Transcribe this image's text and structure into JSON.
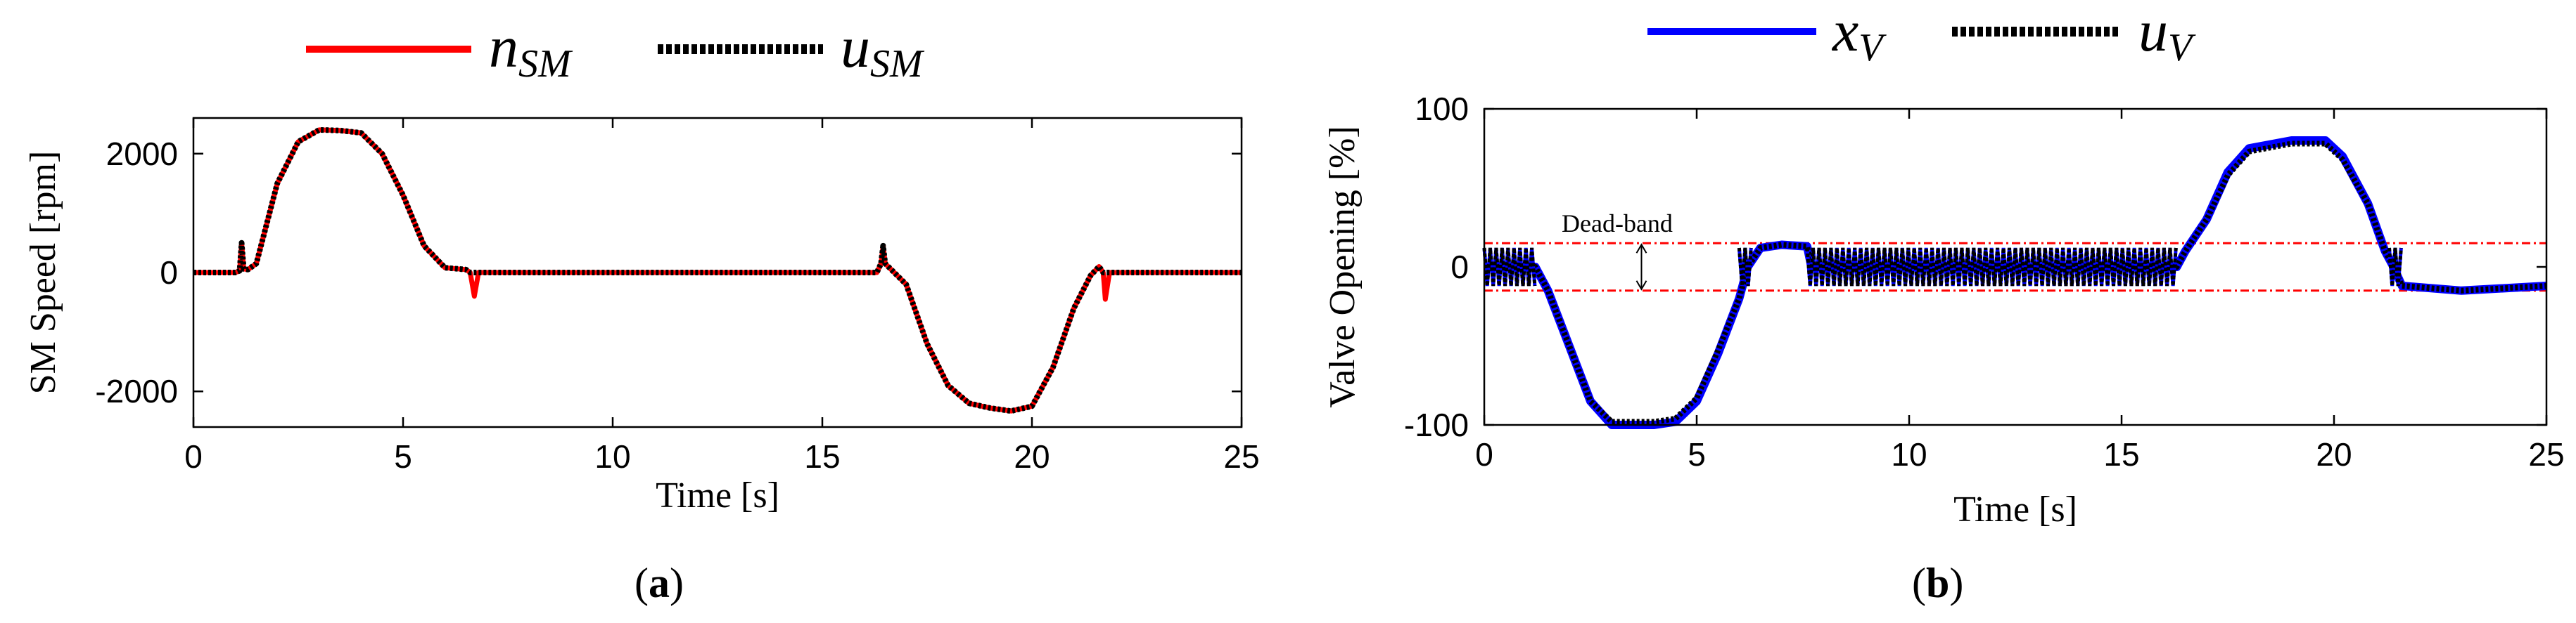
{
  "chart_data": [
    {
      "type": "line",
      "panel_label": "a",
      "xlabel": "Time [s]",
      "ylabel": "SM Speed [rpm]",
      "xlim": [
        0,
        25
      ],
      "ylim": [
        -2600,
        2600
      ],
      "xticks": [
        0,
        5,
        10,
        15,
        20,
        25
      ],
      "yticks": [
        -2000,
        0,
        2000
      ],
      "legend": [
        {
          "base": "n",
          "sub": "SM",
          "style": "solid",
          "color": "#ff0000"
        },
        {
          "base": "u",
          "sub": "SM",
          "style": "dotted",
          "color": "#000000"
        }
      ],
      "series": [
        {
          "name": "nSM",
          "color": "#ff0000",
          "style": "solid",
          "points": [
            [
              0,
              0
            ],
            [
              1.0,
              0
            ],
            [
              1.1,
              30
            ],
            [
              1.15,
              500
            ],
            [
              1.2,
              60
            ],
            [
              1.3,
              50
            ],
            [
              1.5,
              150
            ],
            [
              2.0,
              1500
            ],
            [
              2.5,
              2200
            ],
            [
              3.0,
              2400
            ],
            [
              3.5,
              2390
            ],
            [
              4.0,
              2350
            ],
            [
              4.5,
              2000
            ],
            [
              5.0,
              1300
            ],
            [
              5.5,
              450
            ],
            [
              6.0,
              80
            ],
            [
              6.5,
              50
            ],
            [
              6.6,
              0
            ],
            [
              6.7,
              -400
            ],
            [
              6.8,
              0
            ],
            [
              16.3,
              0
            ],
            [
              16.4,
              150
            ],
            [
              16.45,
              450
            ],
            [
              16.5,
              150
            ],
            [
              17.0,
              -200
            ],
            [
              17.5,
              -1200
            ],
            [
              18.0,
              -1900
            ],
            [
              18.5,
              -2200
            ],
            [
              19.0,
              -2280
            ],
            [
              19.5,
              -2330
            ],
            [
              20.0,
              -2250
            ],
            [
              20.5,
              -1600
            ],
            [
              21.0,
              -600
            ],
            [
              21.4,
              -50
            ],
            [
              21.6,
              100
            ],
            [
              21.7,
              0
            ],
            [
              21.75,
              -450
            ],
            [
              21.85,
              0
            ],
            [
              25,
              0
            ]
          ]
        },
        {
          "name": "uSM",
          "color": "#000000",
          "style": "dotted",
          "points": [
            [
              0,
              0
            ],
            [
              1.0,
              0
            ],
            [
              1.1,
              30
            ],
            [
              1.15,
              500
            ],
            [
              1.2,
              60
            ],
            [
              1.3,
              50
            ],
            [
              1.5,
              150
            ],
            [
              2.0,
              1500
            ],
            [
              2.5,
              2200
            ],
            [
              3.0,
              2400
            ],
            [
              3.5,
              2390
            ],
            [
              4.0,
              2350
            ],
            [
              4.5,
              2000
            ],
            [
              5.0,
              1300
            ],
            [
              5.5,
              450
            ],
            [
              6.0,
              80
            ],
            [
              6.5,
              50
            ],
            [
              6.6,
              0
            ],
            [
              16.3,
              0
            ],
            [
              16.4,
              150
            ],
            [
              16.45,
              450
            ],
            [
              16.5,
              150
            ],
            [
              17.0,
              -200
            ],
            [
              17.5,
              -1200
            ],
            [
              18.0,
              -1900
            ],
            [
              18.5,
              -2200
            ],
            [
              19.0,
              -2280
            ],
            [
              19.5,
              -2330
            ],
            [
              20.0,
              -2250
            ],
            [
              20.5,
              -1600
            ],
            [
              21.0,
              -600
            ],
            [
              21.4,
              -50
            ],
            [
              21.6,
              100
            ],
            [
              21.7,
              0
            ],
            [
              25,
              0
            ]
          ]
        }
      ]
    },
    {
      "type": "line",
      "panel_label": "b",
      "xlabel": "Time [s]",
      "ylabel": "Valve Opening [%]",
      "xlim": [
        0,
        25
      ],
      "ylim": [
        -100,
        100
      ],
      "xticks": [
        0,
        5,
        10,
        15,
        20,
        25
      ],
      "yticks": [
        -100,
        0,
        100
      ],
      "legend": [
        {
          "base": "x",
          "sub": "V",
          "style": "solid",
          "color": "#0000ff"
        },
        {
          "base": "u",
          "sub": "V",
          "style": "dotted",
          "color": "#000000"
        }
      ],
      "dead_band": {
        "label": "Dead-band",
        "upper": 15,
        "lower": -15,
        "color": "#ff0000"
      },
      "series": [
        {
          "name": "xV",
          "color": "#0000ff",
          "style": "solid",
          "points": [
            [
              0,
              0
            ],
            [
              1.2,
              0
            ],
            [
              1.5,
              -15
            ],
            [
              2.0,
              -50
            ],
            [
              2.5,
              -85
            ],
            [
              3.0,
              -100
            ],
            [
              4.0,
              -100
            ],
            [
              4.5,
              -98
            ],
            [
              5.0,
              -85
            ],
            [
              5.5,
              -55
            ],
            [
              6.0,
              -20
            ],
            [
              6.2,
              0
            ],
            [
              6.5,
              12
            ],
            [
              7.0,
              14
            ],
            [
              7.6,
              13
            ],
            [
              7.7,
              0
            ],
            [
              16.3,
              0
            ],
            [
              16.5,
              10
            ],
            [
              17.0,
              30
            ],
            [
              17.5,
              60
            ],
            [
              18.0,
              75
            ],
            [
              19.0,
              80
            ],
            [
              19.8,
              80
            ],
            [
              20.2,
              70
            ],
            [
              20.8,
              40
            ],
            [
              21.2,
              10
            ],
            [
              21.4,
              0
            ],
            [
              21.6,
              -12
            ],
            [
              23,
              -15
            ],
            [
              25,
              -12
            ]
          ]
        },
        {
          "name": "uV",
          "color": "#000000",
          "style": "dotted",
          "points": [
            [
              0,
              0
            ],
            [
              1.2,
              0
            ],
            [
              1.5,
              -15
            ],
            [
              2.0,
              -50
            ],
            [
              2.5,
              -85
            ],
            [
              3.0,
              -98
            ],
            [
              4.0,
              -98
            ],
            [
              4.5,
              -96
            ],
            [
              5.0,
              -83
            ],
            [
              5.5,
              -53
            ],
            [
              6.0,
              -20
            ],
            [
              6.2,
              0
            ],
            [
              6.5,
              12
            ],
            [
              7.0,
              14
            ],
            [
              7.6,
              13
            ],
            [
              7.7,
              0
            ],
            [
              16.3,
              0
            ],
            [
              16.5,
              10
            ],
            [
              17.0,
              30
            ],
            [
              17.5,
              58
            ],
            [
              18.0,
              73
            ],
            [
              19.0,
              78
            ],
            [
              19.8,
              78
            ],
            [
              20.2,
              68
            ],
            [
              20.8,
              40
            ],
            [
              21.2,
              10
            ],
            [
              21.4,
              0
            ],
            [
              21.6,
              -12
            ],
            [
              23,
              -15
            ],
            [
              25,
              -12
            ]
          ]
        }
      ],
      "dither_intervals": [
        [
          0,
          1.2
        ],
        [
          6.0,
          6.3
        ],
        [
          7.6,
          16.3
        ],
        [
          21.3,
          21.6
        ]
      ]
    }
  ]
}
